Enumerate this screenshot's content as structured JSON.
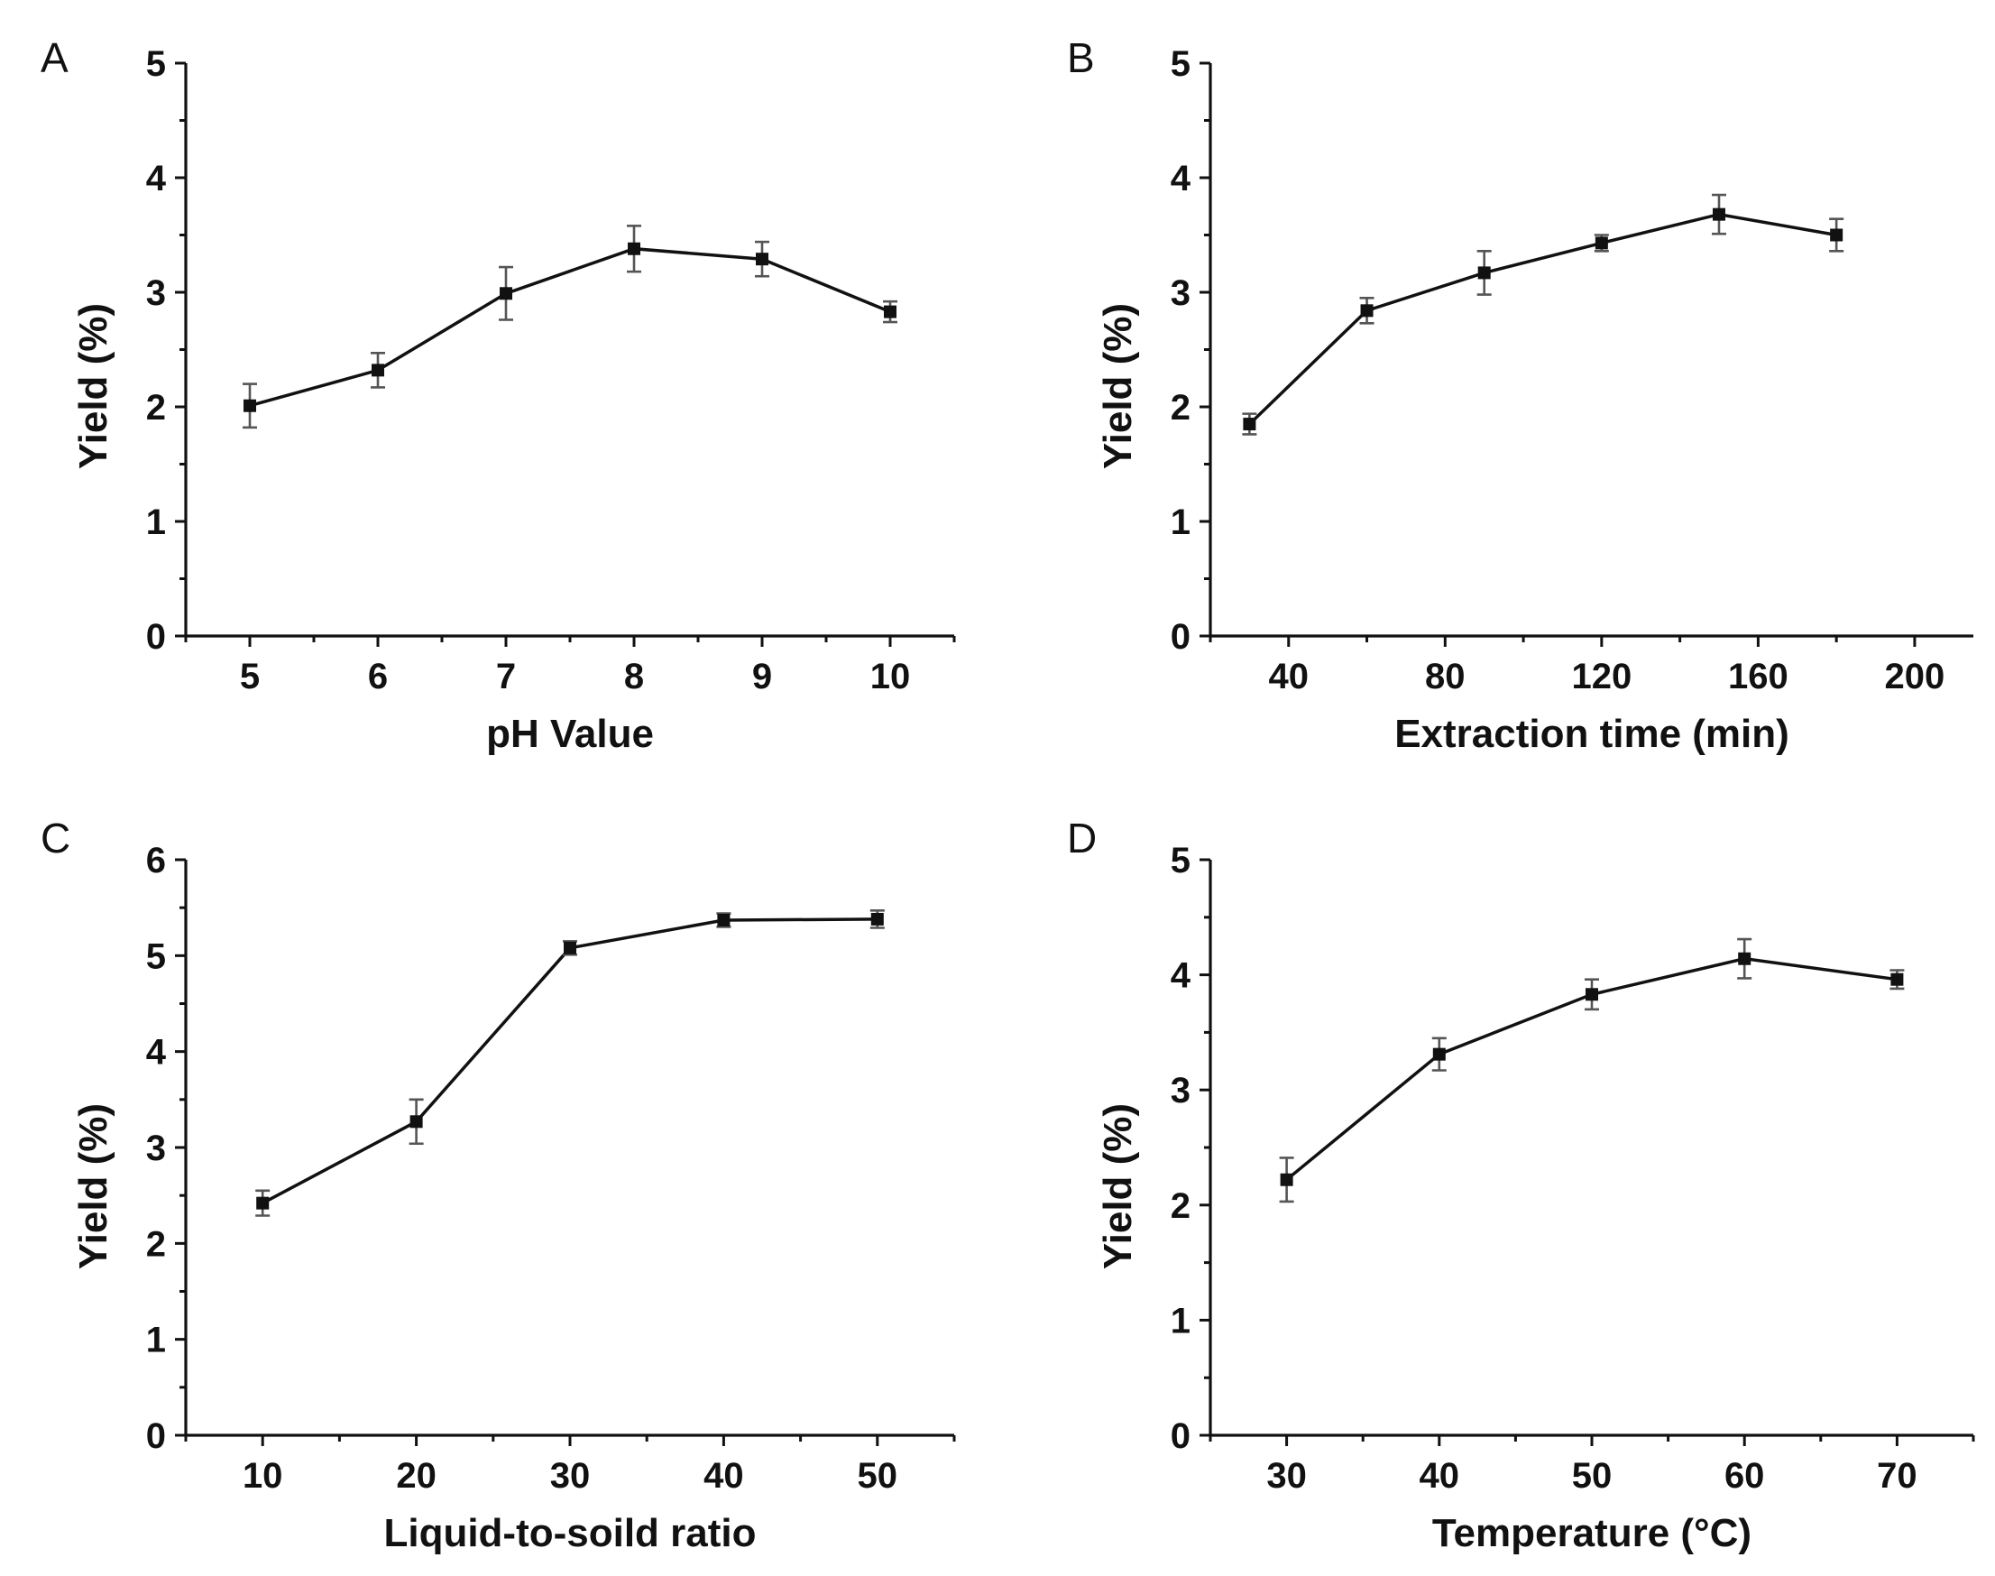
{
  "chart_data": [
    {
      "type": "line",
      "panel": "A",
      "xlabel": "pH Value",
      "ylabel": "Yield (%)",
      "xlim": [
        4.5,
        10.5
      ],
      "ylim": [
        0,
        5
      ],
      "xticks": [
        5,
        6,
        7,
        8,
        9,
        10
      ],
      "yticks": [
        0,
        1,
        2,
        3,
        4,
        5
      ],
      "grid": false,
      "series": [
        {
          "x": [
            5,
            6,
            7,
            8,
            9,
            10
          ],
          "y": [
            2.01,
            2.32,
            2.99,
            3.38,
            3.29,
            2.83
          ],
          "err": [
            0.19,
            0.15,
            0.23,
            0.2,
            0.15,
            0.09
          ]
        }
      ]
    },
    {
      "type": "line",
      "panel": "B",
      "xlabel": "Extraction time (min)",
      "ylabel": "Yield (%)",
      "xlim": [
        20,
        215
      ],
      "ylim": [
        0,
        5
      ],
      "xticks": [
        40,
        80,
        120,
        160,
        200
      ],
      "yticks": [
        0,
        1,
        2,
        3,
        4,
        5
      ],
      "grid": false,
      "series": [
        {
          "x": [
            30,
            60,
            90,
            120,
            150,
            180
          ],
          "y": [
            1.85,
            2.84,
            3.17,
            3.43,
            3.68,
            3.5
          ],
          "err": [
            0.09,
            0.11,
            0.19,
            0.07,
            0.17,
            0.14
          ]
        }
      ]
    },
    {
      "type": "line",
      "panel": "C",
      "xlabel": "Liquid-to-soild ratio",
      "ylabel": "Yield (%)",
      "xlim": [
        5,
        55
      ],
      "ylim": [
        0,
        6
      ],
      "xticks": [
        10,
        20,
        30,
        40,
        50
      ],
      "yticks": [
        0,
        1,
        2,
        3,
        4,
        5,
        6
      ],
      "grid": false,
      "series": [
        {
          "x": [
            10,
            20,
            30,
            40,
            50
          ],
          "y": [
            2.42,
            3.27,
            5.08,
            5.37,
            5.38
          ],
          "err": [
            0.13,
            0.23,
            0.07,
            0.07,
            0.09
          ]
        }
      ]
    },
    {
      "type": "line",
      "panel": "D",
      "xlabel": "Temperature (°C)",
      "ylabel": "Yield (%)",
      "xlim": [
        25,
        75
      ],
      "ylim": [
        0,
        5
      ],
      "xticks": [
        30,
        40,
        50,
        60,
        70
      ],
      "yticks": [
        0,
        1,
        2,
        3,
        4,
        5
      ],
      "grid": false,
      "series": [
        {
          "x": [
            30,
            40,
            50,
            60,
            70
          ],
          "y": [
            2.22,
            3.31,
            3.83,
            4.14,
            3.96
          ],
          "err": [
            0.19,
            0.14,
            0.13,
            0.17,
            0.08
          ]
        }
      ]
    }
  ]
}
